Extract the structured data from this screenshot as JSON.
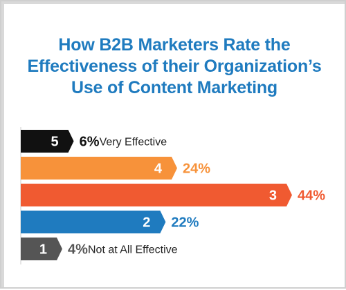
{
  "title_lines": [
    "How B2B Marketers Rate the",
    "Effectiveness of their Organization’s",
    "Use of Content Marketing"
  ],
  "chart_data": {
    "type": "bar",
    "orientation": "horizontal",
    "title": "How B2B Marketers Rate the Effectiveness of their Organization’s Use of Content Marketing",
    "categories": [
      "5",
      "4",
      "3",
      "2",
      "1"
    ],
    "values": [
      6,
      24,
      44,
      22,
      4
    ],
    "value_labels": [
      "6%",
      "24%",
      "44%",
      "22%",
      "4%"
    ],
    "annotations": {
      "5": "Very Effective",
      "1": "Not at All Effective"
    },
    "colors": [
      "#111111",
      "#f7923a",
      "#f05a31",
      "#1f7bbf",
      "#555555"
    ],
    "label_colors": [
      "#111111",
      "#f7923a",
      "#f05a31",
      "#1f7bbf",
      "#555555"
    ],
    "xlim": [
      0,
      44
    ],
    "grid": false,
    "legend": "none"
  }
}
